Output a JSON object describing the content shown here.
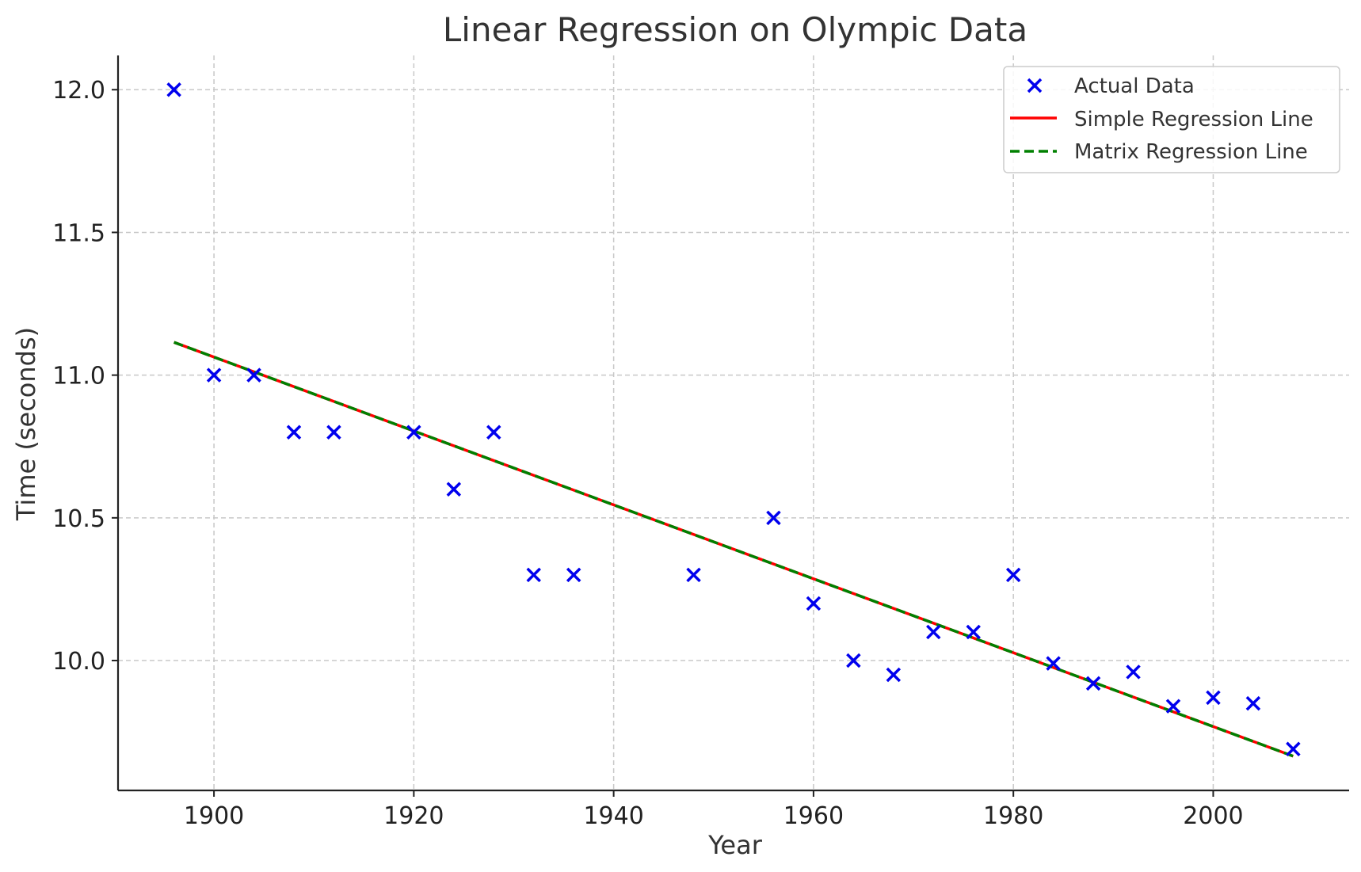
{
  "chart_data": {
    "type": "scatter",
    "title": "Linear Regression on Olympic Data",
    "xlabel": "Year",
    "ylabel": "Time (seconds)",
    "xlim": [
      1890.4,
      2013.6
    ],
    "ylim": [
      9.545,
      12.12
    ],
    "xticks": [
      1900,
      1920,
      1940,
      1960,
      1980,
      2000
    ],
    "yticks": [
      10.0,
      10.5,
      11.0,
      11.5,
      12.0
    ],
    "ytick_labels": [
      "10.0",
      "10.5",
      "11.0",
      "11.5",
      "12.0"
    ],
    "grid": true,
    "legend_position": "top-right",
    "series": [
      {
        "name": "Actual Data",
        "kind": "scatter",
        "marker": "x",
        "color": "#0000ee",
        "x": [
          1896,
          1900,
          1904,
          1908,
          1912,
          1920,
          1924,
          1928,
          1932,
          1936,
          1948,
          1956,
          1960,
          1964,
          1968,
          1972,
          1976,
          1980,
          1984,
          1988,
          1992,
          1996,
          2000,
          2004,
          2008
        ],
        "y": [
          12.0,
          11.0,
          11.0,
          10.8,
          10.8,
          10.8,
          10.6,
          10.8,
          10.3,
          10.3,
          10.3,
          10.5,
          10.2,
          10.0,
          9.95,
          10.1,
          10.1,
          10.3,
          9.99,
          9.92,
          9.96,
          9.84,
          9.87,
          9.85,
          9.69
        ]
      },
      {
        "name": "Simple Regression Line",
        "kind": "line",
        "style": "solid",
        "color": "#ff0000",
        "x": [
          1896,
          2008
        ],
        "y": [
          11.115,
          9.665
        ]
      },
      {
        "name": "Matrix Regression Line",
        "kind": "line",
        "style": "dashed",
        "color": "#008000",
        "x": [
          1896,
          2008
        ],
        "y": [
          11.115,
          9.665
        ]
      }
    ]
  }
}
